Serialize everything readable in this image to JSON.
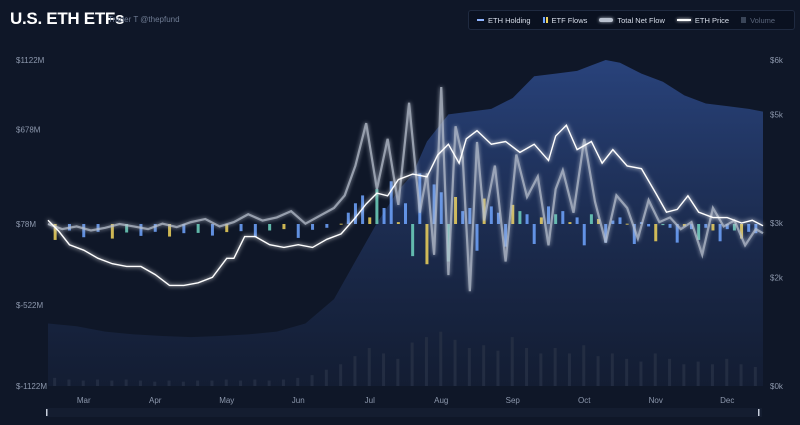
{
  "header": {
    "title": "U.S. ETH ETFs",
    "subtitle": "Trader T @thepfund"
  },
  "legend": [
    {
      "label": "ETH Holding",
      "swatch": "line",
      "color": "#8fb4ff",
      "active": true
    },
    {
      "label": "ETF Flows",
      "swatch": "bars",
      "color": "#6fa4ff",
      "active": true
    },
    {
      "label": "Total Net Flow",
      "swatch": "fat",
      "color": "#b9c1cf",
      "active": true
    },
    {
      "label": "ETH Price",
      "swatch": "white",
      "color": "#ffffff",
      "active": true
    },
    {
      "label": "Volume",
      "swatch": "vol",
      "color": "#3a4558",
      "active": false
    }
  ],
  "colors": {
    "background": "#0f1728",
    "holding_area": "#1f3566",
    "flow_positive": "#6fa4ff",
    "flow_highlight": "#f0d35a",
    "flow_teal": "#6fd3c0",
    "net_flow": "#b9c1cf",
    "price": "#ffffff",
    "volume": "#252f44"
  },
  "chart_data": {
    "type": "line",
    "left_axis": {
      "ticks": [
        "$1122M",
        "$678M",
        "$78M",
        "$-522M",
        "$-1122M"
      ],
      "tick_values": [
        1122,
        678,
        78,
        -522,
        -1122
      ],
      "range": [
        -1122,
        1122
      ]
    },
    "right_axis": {
      "ticks": [
        "$6k",
        "$5k",
        "$3k",
        "$2k",
        "$0k"
      ],
      "tick_values": [
        6,
        5,
        3,
        2,
        0
      ],
      "range": [
        0,
        6
      ]
    },
    "x_axis": {
      "ticks": [
        "Mar",
        "Apr",
        "May",
        "Jun",
        "Jul",
        "Aug",
        "Sep",
        "Oct",
        "Nov",
        "Dec"
      ],
      "tick_positions": [
        0.5,
        1.5,
        2.5,
        3.5,
        4.5,
        5.5,
        6.5,
        7.5,
        8.5,
        9.5
      ],
      "range": [
        0.0,
        10.0
      ]
    },
    "series": [
      {
        "name": "ETH Holding",
        "type": "area",
        "axis": "right",
        "x": [
          0,
          0.4,
          0.8,
          1.2,
          1.6,
          2,
          2.4,
          2.8,
          3.2,
          3.6,
          4,
          4.3,
          4.6,
          4.9,
          5.1,
          5.3,
          5.6,
          5.9,
          6.2,
          6.5,
          6.8,
          7.1,
          7.4,
          7.6,
          7.8,
          8.0,
          8.3,
          8.6,
          8.9,
          9.2,
          9.5,
          9.8,
          10
        ],
        "values": [
          1.15,
          1.1,
          1.0,
          0.95,
          0.92,
          0.9,
          0.92,
          0.95,
          1.0,
          1.15,
          1.6,
          2.3,
          3.0,
          3.6,
          3.9,
          4.5,
          5.0,
          5.05,
          5.1,
          5.3,
          5.7,
          5.75,
          5.8,
          5.9,
          6.0,
          5.95,
          5.75,
          5.6,
          5.35,
          5.2,
          5.15,
          5.1,
          5.05
        ]
      },
      {
        "name": "ETH Price",
        "type": "line",
        "axis": "right",
        "x": [
          0,
          0.15,
          0.3,
          0.5,
          0.7,
          0.9,
          1.1,
          1.3,
          1.5,
          1.7,
          1.9,
          2.1,
          2.3,
          2.5,
          2.6,
          2.75,
          2.9,
          3.1,
          3.3,
          3.5,
          3.7,
          3.9,
          4.1,
          4.3,
          4.45,
          4.6,
          4.75,
          4.9,
          5.1,
          5.3,
          5.45,
          5.6,
          5.75,
          5.85,
          6.0,
          6.2,
          6.4,
          6.6,
          6.8,
          7.0,
          7.1,
          7.25,
          7.4,
          7.6,
          7.75,
          7.9,
          8.1,
          8.3,
          8.5,
          8.65,
          8.8,
          8.95,
          9.1,
          9.3,
          9.5,
          9.7,
          9.85,
          10
        ],
        "values": [
          3.05,
          2.85,
          2.6,
          2.5,
          2.35,
          2.25,
          2.2,
          2.2,
          2.05,
          1.85,
          1.85,
          1.9,
          2.0,
          2.35,
          2.35,
          2.75,
          2.75,
          2.6,
          2.55,
          2.6,
          2.55,
          2.7,
          2.8,
          3.1,
          3.35,
          3.55,
          3.5,
          3.8,
          3.9,
          3.85,
          4.25,
          4.45,
          4.1,
          4.55,
          4.7,
          4.45,
          4.5,
          4.3,
          4.45,
          4.15,
          4.6,
          4.8,
          4.35,
          4.5,
          4.1,
          4.35,
          4.05,
          4.0,
          3.55,
          3.2,
          3.25,
          3.5,
          3.2,
          3.1,
          3.1,
          3.0,
          3.05,
          2.95
        ]
      },
      {
        "name": "Total Net Flow",
        "type": "line",
        "axis": "left",
        "x": [
          0,
          0.2,
          0.4,
          0.6,
          0.8,
          1.0,
          1.2,
          1.4,
          1.6,
          1.8,
          2.0,
          2.2,
          2.4,
          2.6,
          2.8,
          3.0,
          3.2,
          3.4,
          3.6,
          3.8,
          4.0,
          4.15,
          4.3,
          4.45,
          4.6,
          4.75,
          4.9,
          5.05,
          5.2,
          5.3,
          5.4,
          5.5,
          5.6,
          5.7,
          5.8,
          5.9,
          6.0,
          6.1,
          6.25,
          6.4,
          6.55,
          6.7,
          6.85,
          7.0,
          7.1,
          7.2,
          7.35,
          7.5,
          7.65,
          7.8,
          7.95,
          8.1,
          8.25,
          8.4,
          8.55,
          8.7,
          8.85,
          9.0,
          9.15,
          9.3,
          9.45,
          9.6,
          9.75,
          9.9,
          10
        ],
        "values": [
          78,
          40,
          60,
          30,
          50,
          78,
          60,
          40,
          80,
          55,
          90,
          110,
          60,
          90,
          140,
          100,
          120,
          160,
          80,
          130,
          180,
          260,
          450,
          720,
          300,
          620,
          200,
          850,
          150,
          400,
          -150,
          950,
          -300,
          700,
          500,
          -420,
          600,
          100,
          450,
          -200,
          520,
          250,
          380,
          -80,
          300,
          420,
          150,
          620,
          220,
          -60,
          260,
          180,
          -30,
          230,
          90,
          120,
          40,
          90,
          -150,
          180,
          60,
          100,
          -80,
          40,
          10
        ]
      },
      {
        "name": "ETF Flows",
        "type": "bar",
        "axis": "left",
        "x": [
          0.1,
          0.3,
          0.5,
          0.7,
          0.9,
          1.1,
          1.3,
          1.5,
          1.7,
          1.9,
          2.1,
          2.3,
          2.5,
          2.7,
          2.9,
          3.1,
          3.3,
          3.5,
          3.7,
          3.9,
          4.1,
          4.2,
          4.3,
          4.4,
          4.5,
          4.6,
          4.7,
          4.8,
          4.9,
          5.0,
          5.1,
          5.2,
          5.3,
          5.4,
          5.5,
          5.6,
          5.7,
          5.8,
          5.9,
          6.0,
          6.1,
          6.2,
          6.3,
          6.4,
          6.5,
          6.6,
          6.7,
          6.8,
          6.9,
          7.0,
          7.1,
          7.2,
          7.3,
          7.4,
          7.5,
          7.6,
          7.7,
          7.8,
          7.9,
          8.0,
          8.1,
          8.2,
          8.3,
          8.4,
          8.5,
          8.6,
          8.7,
          8.8,
          8.9,
          9.0,
          9.1,
          9.2,
          9.3,
          9.4,
          9.5,
          9.6,
          9.7,
          9.8,
          9.9
        ],
        "values": [
          -40,
          30,
          -20,
          20,
          -30,
          15,
          -10,
          20,
          -15,
          10,
          12,
          -8,
          18,
          25,
          -20,
          30,
          40,
          -25,
          35,
          50,
          80,
          150,
          210,
          260,
          120,
          300,
          180,
          350,
          90,
          210,
          -160,
          400,
          -220,
          330,
          280,
          -200,
          250,
          160,
          180,
          -120,
          240,
          190,
          150,
          -90,
          200,
          160,
          140,
          -70,
          120,
          190,
          140,
          160,
          90,
          120,
          -80,
          140,
          110,
          -60,
          100,
          120,
          80,
          -70,
          90,
          60,
          -50,
          70,
          50,
          -60,
          60,
          40,
          -40,
          50,
          30,
          -50,
          40,
          30,
          -30,
          20,
          10
        ]
      },
      {
        "name": "Volume",
        "type": "bar",
        "axis": "right",
        "x": [
          0.1,
          0.3,
          0.5,
          0.7,
          0.9,
          1.1,
          1.3,
          1.5,
          1.7,
          1.9,
          2.1,
          2.3,
          2.5,
          2.7,
          2.9,
          3.1,
          3.3,
          3.5,
          3.7,
          3.9,
          4.1,
          4.3,
          4.5,
          4.7,
          4.9,
          5.1,
          5.3,
          5.5,
          5.7,
          5.9,
          6.1,
          6.3,
          6.5,
          6.7,
          6.9,
          7.1,
          7.3,
          7.5,
          7.7,
          7.9,
          8.1,
          8.3,
          8.5,
          8.7,
          8.9,
          9.1,
          9.3,
          9.5,
          9.7,
          9.9
        ],
        "values": [
          0.15,
          0.12,
          0.1,
          0.12,
          0.1,
          0.12,
          0.1,
          0.08,
          0.1,
          0.08,
          0.1,
          0.1,
          0.12,
          0.1,
          0.12,
          0.1,
          0.12,
          0.15,
          0.2,
          0.3,
          0.4,
          0.55,
          0.7,
          0.6,
          0.5,
          0.8,
          0.9,
          1.0,
          0.85,
          0.7,
          0.75,
          0.65,
          0.9,
          0.7,
          0.6,
          0.7,
          0.6,
          0.75,
          0.55,
          0.6,
          0.5,
          0.45,
          0.6,
          0.5,
          0.4,
          0.45,
          0.4,
          0.5,
          0.4,
          0.35
        ]
      }
    ]
  }
}
